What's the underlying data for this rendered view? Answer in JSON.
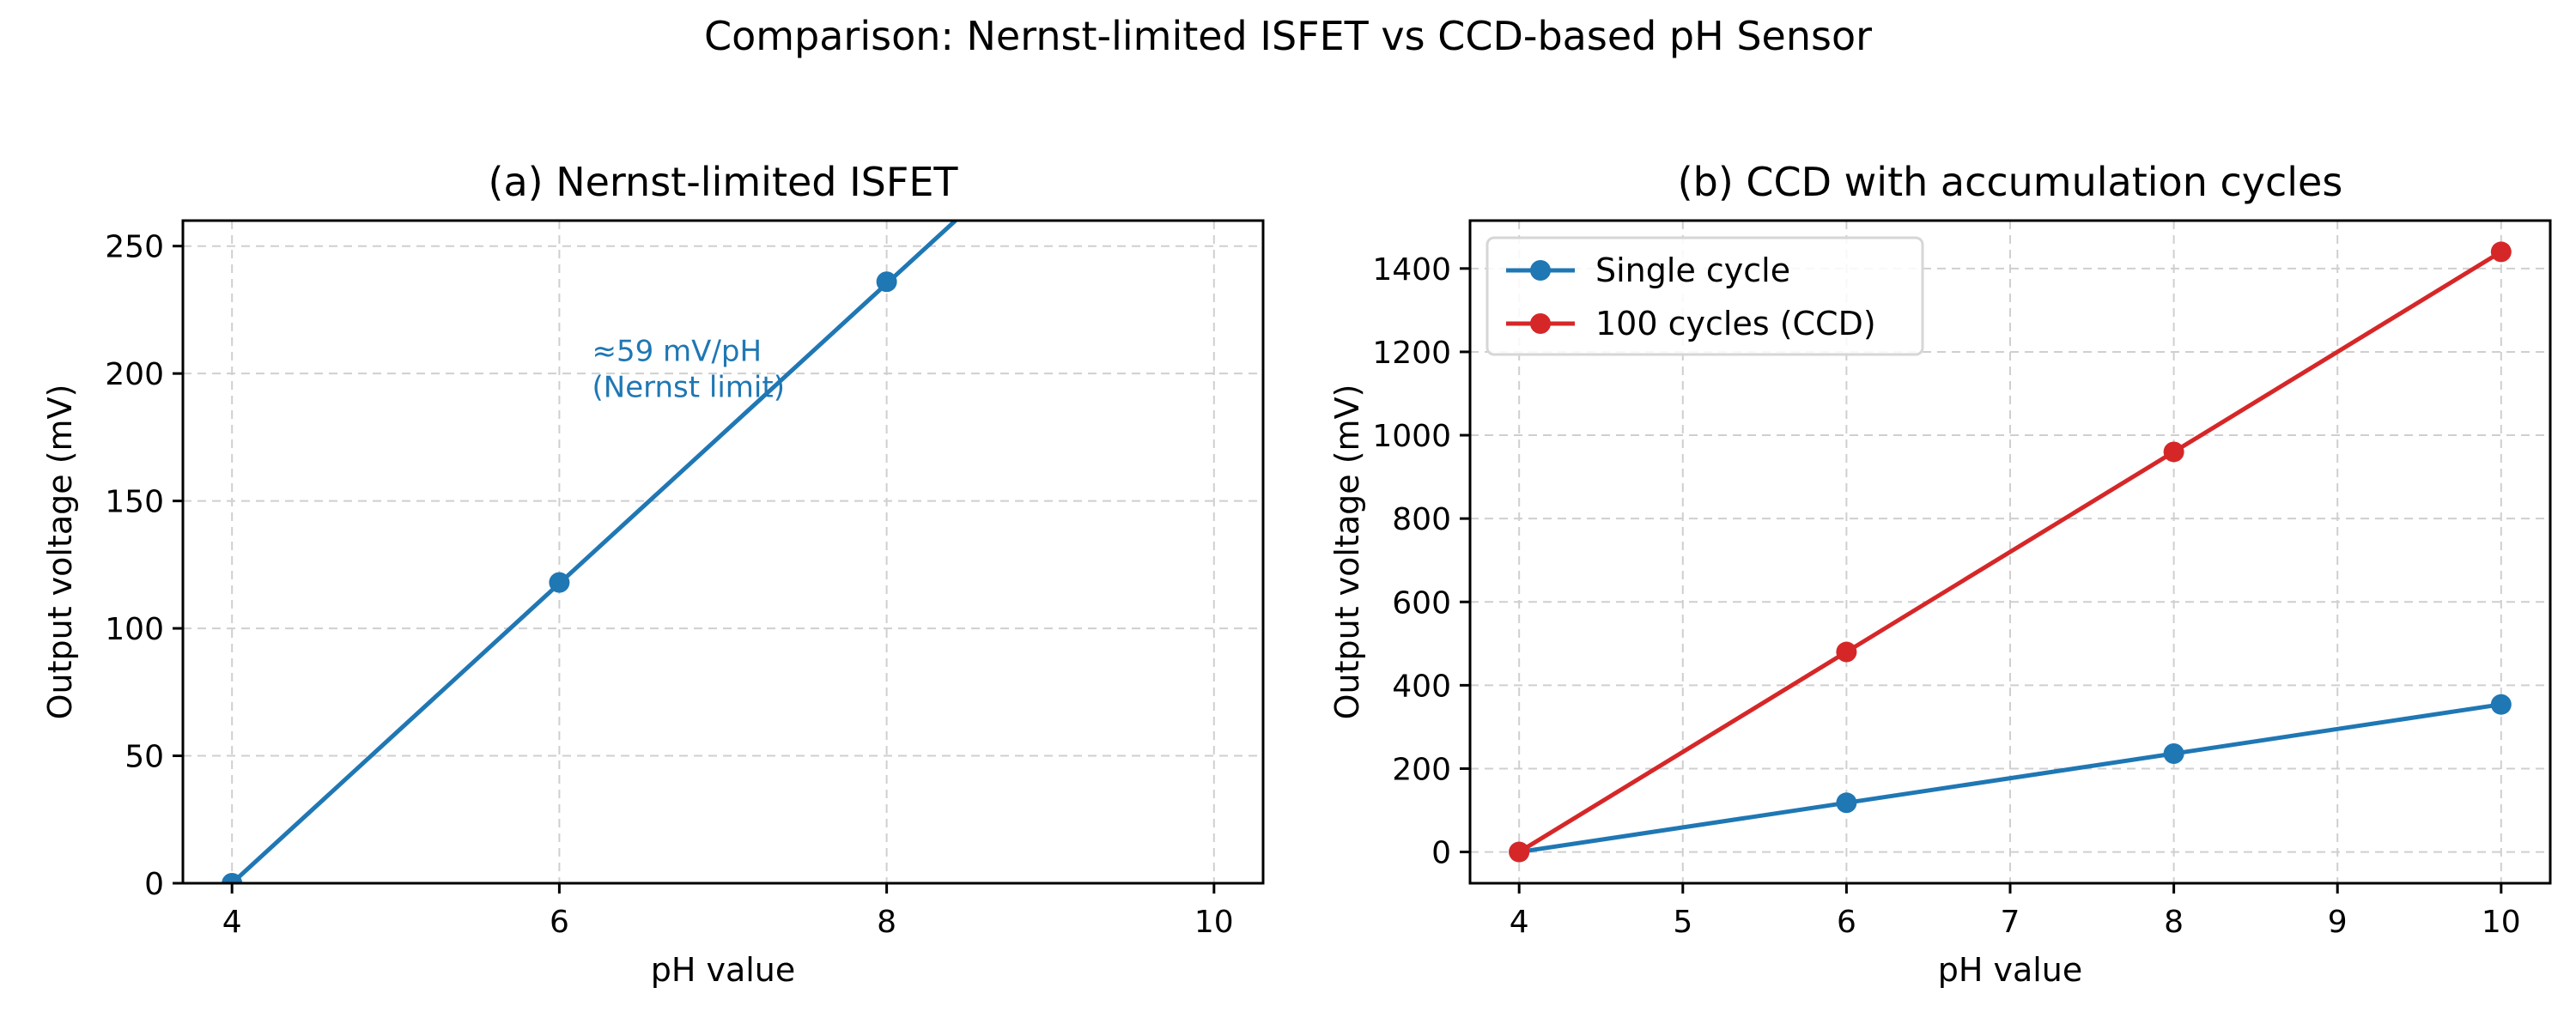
{
  "figure": {
    "title": "Comparison: Nernst-limited ISFET vs CCD-based pH Sensor"
  },
  "chart_data": [
    {
      "id": "a",
      "type": "line",
      "title": "(a) Nernst-limited ISFET",
      "xlabel": "pH value",
      "ylabel": "Output voltage (mV)",
      "xlim": [
        3.7,
        10.3
      ],
      "ylim": [
        0,
        260
      ],
      "xticks": [
        4,
        6,
        8,
        10
      ],
      "yticks": [
        0,
        50,
        100,
        150,
        200,
        250
      ],
      "grid": true,
      "series": [
        {
          "color": "#1f77b4",
          "line": {
            "x": [
              4,
              8.42
            ],
            "y": [
              0,
              260
            ]
          },
          "points": {
            "x": [
              4,
              6,
              8
            ],
            "y": [
              0,
              118,
              236
            ]
          }
        }
      ],
      "annotation": {
        "lines": [
          "≈59 mV/pH",
          "(Nernst limit)"
        ],
        "x": 6.2,
        "y": 205,
        "color": "#1f77b4"
      }
    },
    {
      "id": "b",
      "type": "line",
      "title": "(b) CCD with accumulation cycles",
      "xlabel": "pH value",
      "ylabel": "Output voltage (mV)",
      "xlim": [
        3.7,
        10.3
      ],
      "ylim": [
        -75,
        1515
      ],
      "xticks": [
        4,
        5,
        6,
        7,
        8,
        9,
        10
      ],
      "yticks": [
        0,
        200,
        400,
        600,
        800,
        1000,
        1200,
        1400
      ],
      "grid": true,
      "legend": "top-left",
      "series": [
        {
          "name": "Single cycle",
          "color": "#1f77b4",
          "x": [
            4,
            6,
            8,
            10
          ],
          "y": [
            0,
            118,
            236,
            354
          ]
        },
        {
          "name": "100 cycles (CCD)",
          "color": "#d62728",
          "x": [
            4,
            6,
            8,
            10
          ],
          "y": [
            0,
            480,
            960,
            1440
          ]
        }
      ]
    }
  ]
}
